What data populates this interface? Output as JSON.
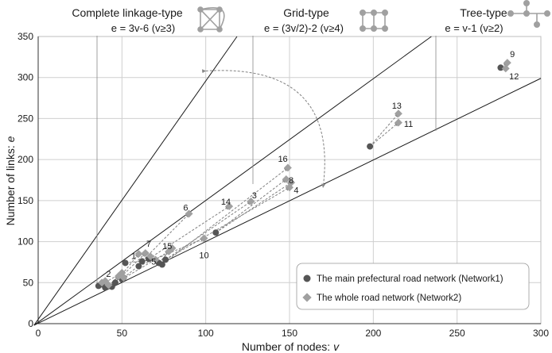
{
  "chart_data": {
    "type": "scatter",
    "xlabel": "Number of nodes: ",
    "xlabel_var": "v",
    "ylabel": "Number of links: ",
    "ylabel_var": "e",
    "xlim": [
      0,
      300
    ],
    "ylim": [
      0,
      350
    ],
    "xticks": [
      "0",
      "50",
      "100",
      "150",
      "200",
      "250",
      "300"
    ],
    "yticks": [
      "0",
      "50",
      "100",
      "150",
      "200",
      "250",
      "300",
      "350"
    ],
    "grid": true,
    "colors": {
      "network1": "#555555",
      "network2": "#a0a0a0",
      "lines": "#1a1a1a",
      "arrows": "#777777"
    },
    "reference_lines": [
      {
        "name": "Complete linkage-type",
        "formula": "e = 3v-6  (v≥3)",
        "slope": 3,
        "intercept": -6
      },
      {
        "name": "Grid-type",
        "formula": "e = (3v/2)-2  (v≥4)",
        "slope": 1.5,
        "intercept": -2
      },
      {
        "name": "Tree-type",
        "formula": "e = v-1  (v≥2)",
        "slope": 1,
        "intercept": -1
      }
    ],
    "series": [
      {
        "name": "The main prefectural road network (Network1)",
        "marker": "circle",
        "points": [
          [
            36,
            46
          ],
          [
            38,
            48
          ],
          [
            40,
            44
          ],
          [
            42,
            46
          ],
          [
            44,
            45
          ],
          [
            46,
            50
          ],
          [
            50,
            54
          ],
          [
            51,
            56
          ],
          [
            52,
            74
          ],
          [
            60,
            70
          ],
          [
            62,
            76
          ],
          [
            66,
            79
          ],
          [
            72,
            74
          ],
          [
            74,
            72
          ],
          [
            76,
            78
          ],
          [
            106,
            111
          ],
          [
            198,
            216
          ],
          [
            276,
            312
          ]
        ]
      },
      {
        "name": "The whole road network (Network2)",
        "marker": "diamond",
        "points": [
          [
            38,
            50
          ],
          [
            40,
            52
          ],
          [
            42,
            47
          ],
          [
            48,
            58
          ],
          [
            50,
            62
          ],
          [
            51,
            56
          ],
          [
            60,
            85
          ],
          [
            64,
            86
          ],
          [
            67,
            82
          ],
          [
            70,
            78
          ],
          [
            78,
            88
          ],
          [
            80,
            92
          ],
          [
            90,
            134
          ],
          [
            99,
            104
          ],
          [
            114,
            143
          ],
          [
            127,
            149
          ],
          [
            148,
            176
          ],
          [
            149,
            190
          ],
          [
            150,
            166
          ],
          [
            151,
            172
          ],
          [
            215,
            245
          ],
          [
            215,
            256
          ],
          [
            279,
            311
          ],
          [
            280,
            318
          ]
        ]
      }
    ],
    "arrows": [
      [
        [
          198,
          216
        ],
        [
          215,
          245
        ]
      ],
      [
        [
          198,
          216
        ],
        [
          215,
          256
        ]
      ],
      [
        [
          276,
          312
        ],
        [
          279,
          311
        ]
      ],
      [
        [
          276,
          312
        ],
        [
          280,
          318
        ]
      ],
      [
        [
          106,
          111
        ],
        [
          148,
          176
        ]
      ],
      [
        [
          106,
          111
        ],
        [
          151,
          172
        ]
      ],
      [
        [
          74,
          72
        ],
        [
          149,
          190
        ]
      ],
      [
        [
          76,
          78
        ],
        [
          150,
          166
        ]
      ],
      [
        [
          76,
          78
        ],
        [
          127,
          149
        ]
      ],
      [
        [
          66,
          79
        ],
        [
          114,
          143
        ]
      ],
      [
        [
          62,
          76
        ],
        [
          90,
          134
        ]
      ],
      [
        [
          60,
          70
        ],
        [
          99,
          104
        ]
      ],
      [
        [
          52,
          74
        ],
        [
          70,
          78
        ]
      ],
      [
        [
          50,
          54
        ],
        [
          78,
          88
        ]
      ],
      [
        [
          46,
          50
        ],
        [
          64,
          86
        ]
      ],
      [
        [
          44,
          45
        ],
        [
          60,
          85
        ]
      ],
      [
        [
          42,
          46
        ],
        [
          48,
          58
        ]
      ],
      [
        [
          38,
          48
        ],
        [
          50,
          62
        ]
      ],
      [
        [
          36,
          46
        ],
        [
          40,
          52
        ]
      ],
      [
        [
          40,
          44
        ],
        [
          42,
          47
        ]
      ],
      [
        [
          72,
          74
        ],
        [
          80,
          92
        ]
      ],
      [
        [
          51,
          56
        ],
        [
          67,
          82
        ]
      ]
    ],
    "curved_arrow": {
      "from": [
        100,
        308
      ],
      "to": [
        170,
        166
      ]
    },
    "labels": [
      {
        "text": "9",
        "x": 283,
        "y": 325
      },
      {
        "text": "12",
        "x": 284,
        "y": 298
      },
      {
        "text": "13",
        "x": 214,
        "y": 262
      },
      {
        "text": "11",
        "x": 221,
        "y": 240
      },
      {
        "text": "16",
        "x": 146,
        "y": 197
      },
      {
        "text": "8",
        "x": 151,
        "y": 171
      },
      {
        "text": "4",
        "x": 154,
        "y": 159
      },
      {
        "text": "3",
        "x": 129,
        "y": 153
      },
      {
        "text": "14",
        "x": 112,
        "y": 145
      },
      {
        "text": "6",
        "x": 88,
        "y": 138
      },
      {
        "text": "7",
        "x": 66,
        "y": 94
      },
      {
        "text": "15",
        "x": 77,
        "y": 91
      },
      {
        "text": "1",
        "x": 57,
        "y": 79
      },
      {
        "text": "5",
        "x": 69,
        "y": 72
      },
      {
        "text": "10",
        "x": 99,
        "y": 80
      },
      {
        "text": "2",
        "x": 42,
        "y": 57
      }
    ]
  }
}
